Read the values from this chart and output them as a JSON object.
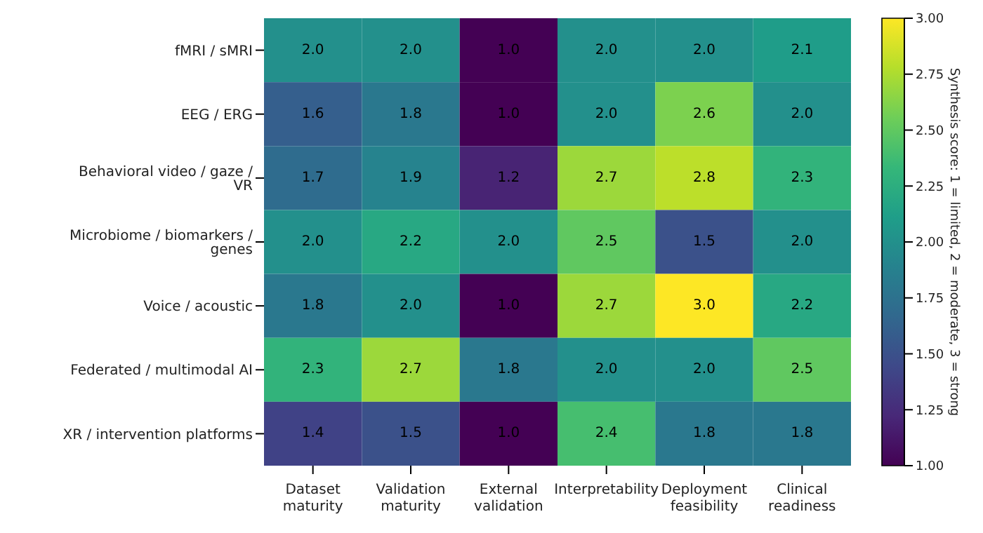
{
  "chart_data": {
    "type": "heatmap",
    "categories": [
      "Dataset maturity",
      "Validation maturity",
      "External validation",
      "Interpretability",
      "Deployment feasibility",
      "Clinical readiness"
    ],
    "y_categories": [
      "fMRI / sMRI",
      "EEG / ERG",
      "Behavioral video / gaze / VR",
      "Microbiome / biomarkers / genes",
      "Voice / acoustic",
      "Federated / multimodal AI",
      "XR / intervention platforms"
    ],
    "cells": [
      [
        2.0,
        2.0,
        1.0,
        2.0,
        2.0,
        2.1
      ],
      [
        1.6,
        1.8,
        1.0,
        2.0,
        2.6,
        2.0
      ],
      [
        1.7,
        1.9,
        1.2,
        2.7,
        2.8,
        2.3
      ],
      [
        2.0,
        2.2,
        2.0,
        2.5,
        1.5,
        2.0
      ],
      [
        1.8,
        2.0,
        1.0,
        2.7,
        3.0,
        2.2
      ],
      [
        2.3,
        2.7,
        1.8,
        2.0,
        2.0,
        2.5
      ],
      [
        1.4,
        1.5,
        1.0,
        2.4,
        1.8,
        1.8
      ]
    ],
    "cell_labels": [
      [
        "2.0",
        "2.0",
        "1.0",
        "2.0",
        "2.0",
        "2.1"
      ],
      [
        "1.6",
        "1.8",
        "1.0",
        "2.0",
        "2.6",
        "2.0"
      ],
      [
        "1.7",
        "1.9",
        "1.2",
        "2.7",
        "2.8",
        "2.3"
      ],
      [
        "2.0",
        "2.2",
        "2.0",
        "2.5",
        "1.5",
        "2.0"
      ],
      [
        "1.8",
        "2.0",
        "1.0",
        "2.7",
        "3.0",
        "2.2"
      ],
      [
        "2.3",
        "2.7",
        "1.8",
        "2.0",
        "2.0",
        "2.5"
      ],
      [
        "1.4",
        "1.5",
        "1.0",
        "2.4",
        "1.8",
        "1.8"
      ]
    ],
    "clabel": "Synthesis score: 1 = limited, 2 = moderate, 3 = strong",
    "clim": [
      1,
      3
    ],
    "cticks": [
      {
        "value": 1,
        "label": "1.00"
      },
      {
        "value": 1.25,
        "label": "1.25"
      },
      {
        "value": 1.5,
        "label": "1.50"
      },
      {
        "value": 1.75,
        "label": "1.75"
      },
      {
        "value": 2,
        "label": "2.00"
      },
      {
        "value": 2.25,
        "label": "2.25"
      },
      {
        "value": 2.5,
        "label": "2.50"
      },
      {
        "value": 2.75,
        "label": "2.75"
      },
      {
        "value": 3,
        "label": "3.00"
      }
    ]
  }
}
